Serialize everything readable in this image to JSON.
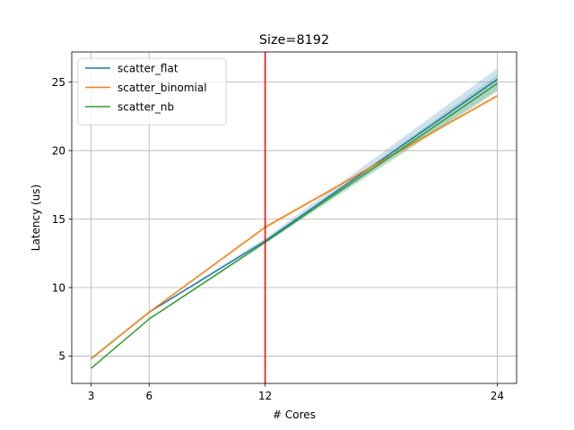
{
  "chart_data": {
    "type": "line",
    "title": "Size=8192",
    "xlabel": "# Cores",
    "ylabel": "Latency (us)",
    "xlim": [
      2.0,
      25.0
    ],
    "ylim": [
      3.0,
      27.2
    ],
    "xticks": [
      3,
      6,
      12,
      24
    ],
    "yticks": [
      5,
      10,
      15,
      20,
      25
    ],
    "grid": true,
    "legend_position": "top-left",
    "vline": {
      "x": 12,
      "color": "#ff0000"
    },
    "x": [
      3,
      6,
      12,
      24
    ],
    "series": [
      {
        "name": "scatter_flat",
        "color": "#1f77b4",
        "values": [
          4.8,
          8.2,
          13.4,
          25.2
        ],
        "band_low": [
          4.75,
          8.15,
          13.35,
          24.4
        ],
        "band_high": [
          4.85,
          8.25,
          13.6,
          26.0
        ]
      },
      {
        "name": "scatter_binomial",
        "color": "#ff7f0e",
        "values": [
          4.8,
          8.2,
          14.4,
          24.0
        ],
        "band_low": [
          4.75,
          8.15,
          14.3,
          23.9
        ],
        "band_high": [
          4.85,
          8.25,
          14.5,
          24.1
        ]
      },
      {
        "name": "scatter_nb",
        "color": "#2ca02c",
        "values": [
          4.1,
          7.7,
          13.3,
          24.9
        ],
        "band_low": [
          4.05,
          7.65,
          13.2,
          24.3
        ],
        "band_high": [
          4.15,
          7.75,
          13.4,
          25.5
        ]
      }
    ]
  }
}
